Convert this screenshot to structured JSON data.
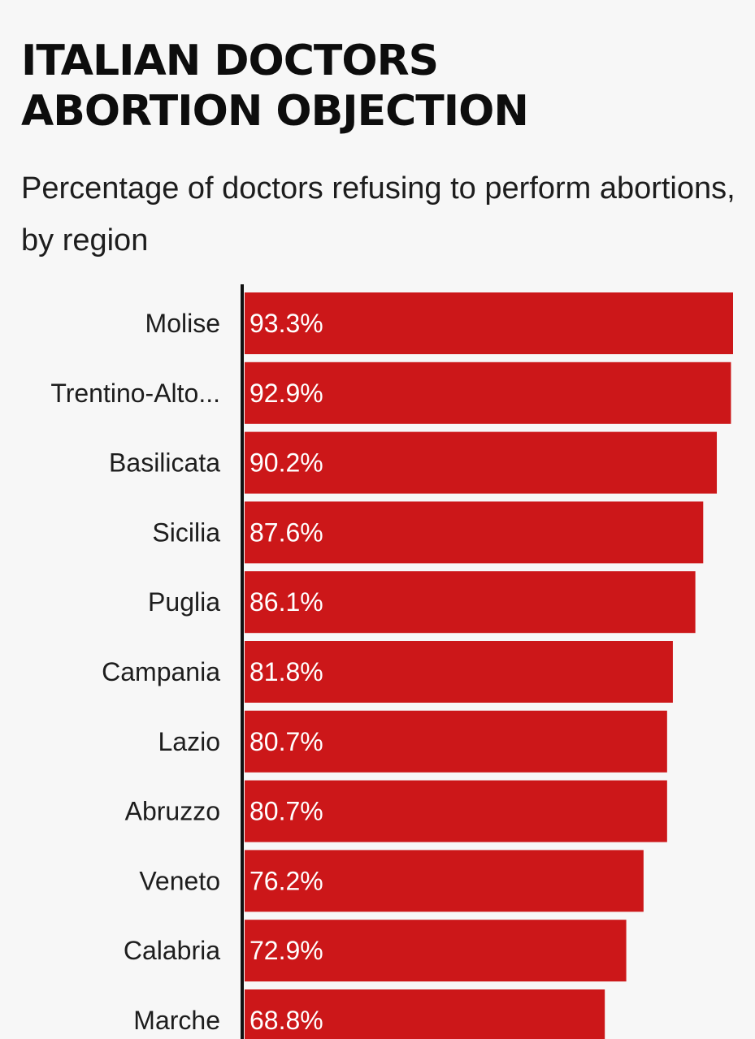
{
  "chart_data": {
    "type": "bar",
    "orientation": "horizontal",
    "title_lines": [
      "ITALIAN DOCTORS",
      "ABORTION OBJECTION"
    ],
    "subtitle": "Percentage of doctors refusing to perform abortions, by region",
    "categories": [
      "Molise",
      "Trentino-Alto...",
      "Basilicata",
      "Sicilia",
      "Puglia",
      "Campania",
      "Lazio",
      "Abruzzo",
      "Veneto",
      "Calabria",
      "Marche"
    ],
    "values": [
      93.3,
      92.9,
      90.2,
      87.6,
      86.1,
      81.8,
      80.7,
      80.7,
      76.2,
      72.9,
      68.8
    ],
    "value_labels": [
      "93.3%",
      "92.9%",
      "90.2%",
      "87.6%",
      "86.1%",
      "81.8%",
      "80.7%",
      "80.7%",
      "76.2%",
      "72.9%",
      "68.8%"
    ],
    "xlim": [
      0,
      93.3
    ],
    "grid": false,
    "bar_color": "#cc1719",
    "axis_color": "#111111"
  }
}
